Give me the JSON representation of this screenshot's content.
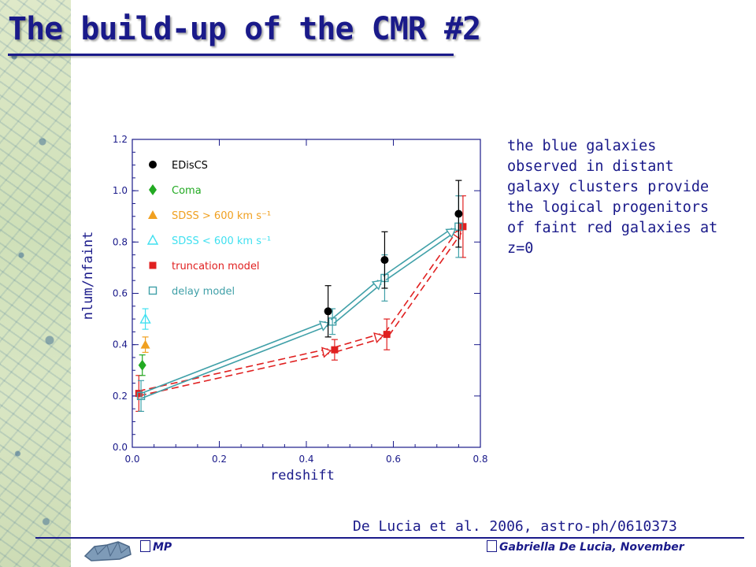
{
  "slide": {
    "title": "The build-up of the CMR #2",
    "body_lines": [
      "the blue galaxies",
      "observed in distant",
      "galaxy clusters provide",
      "the logical progenitors",
      "of faint red galaxies at",
      "z=0"
    ],
    "citation": "De Lucia et al. 2006, astro-ph/0610373",
    "footer_left": "MP",
    "footer_right": "Gabriella De Lucia, November"
  },
  "chart_data": {
    "type": "scatter",
    "xlabel": "redshift",
    "ylabel": "nlum/nfaint",
    "xlim": [
      0.0,
      0.8
    ],
    "ylim": [
      0.0,
      1.2
    ],
    "x_ticks": [
      "0.0",
      "0.2",
      "0.4",
      "0.6",
      "0.8"
    ],
    "y_ticks": [
      "0.0",
      "0.2",
      "0.4",
      "0.6",
      "0.8",
      "1.0",
      "1.2"
    ],
    "grid": false,
    "legend_position": "top-left",
    "colors": {
      "EDisCS": "#000000",
      "Coma": "#22aa22",
      "SDSS_high": "#f0a020",
      "SDSS_low": "#40e0f0",
      "truncation": "#e02020",
      "delay": "#40a0a8",
      "axes": "#1a1a8a"
    },
    "series": [
      {
        "name": "EDisCS",
        "marker": "filled-circle",
        "x": [
          0.45,
          0.58,
          0.75
        ],
        "y": [
          0.53,
          0.73,
          0.91
        ],
        "err": [
          0.1,
          0.11,
          0.13
        ]
      },
      {
        "name": "Coma",
        "marker": "filled-diamond",
        "x": [
          0.023
        ],
        "y": [
          0.32
        ],
        "err": [
          0.04
        ]
      },
      {
        "name": "SDSS > 600 km s⁻¹",
        "marker": "filled-triangle",
        "x": [
          0.03
        ],
        "y": [
          0.4
        ],
        "err": [
          0.03
        ]
      },
      {
        "name": "SDSS < 600 km s⁻¹",
        "marker": "open-triangle",
        "x": [
          0.03
        ],
        "y": [
          0.5
        ],
        "err": [
          0.04
        ]
      },
      {
        "name": "truncation model",
        "marker": "filled-square",
        "x": [
          0.015,
          0.465,
          0.585,
          0.76
        ],
        "y": [
          0.21,
          0.38,
          0.44,
          0.86
        ],
        "err": [
          0.07,
          0.04,
          0.06,
          0.12
        ],
        "connected": "dashed-arrows"
      },
      {
        "name": "delay model",
        "marker": "open-square",
        "x": [
          0.02,
          0.46,
          0.58,
          0.75
        ],
        "y": [
          0.2,
          0.49,
          0.66,
          0.86
        ],
        "err": [
          0.06,
          0.05,
          0.09,
          0.12
        ],
        "connected": "solid-arrows"
      }
    ]
  }
}
